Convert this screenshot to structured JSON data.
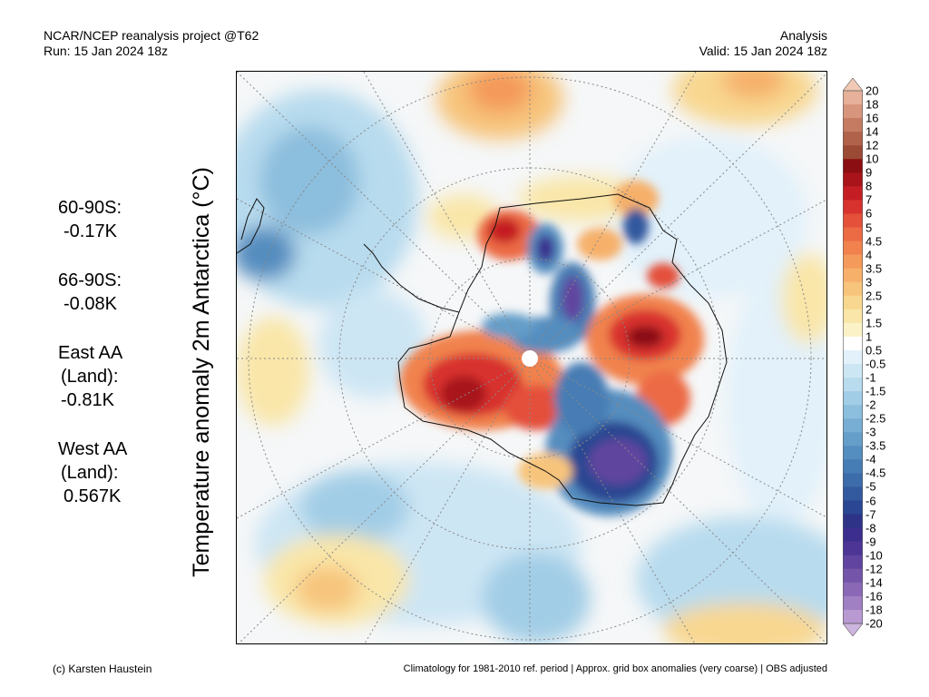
{
  "header": {
    "line1_left": "NCAR/NCEP reanalysis project @T62",
    "line2_left": "Run: 15 Jan 2024 18z",
    "line1_right": "Analysis",
    "line2_right": "Valid: 15 Jan 2024 18z"
  },
  "axis_title": "Temperature anomaly 2m Antarctica (°C)",
  "stats": [
    {
      "label": "60-90S:",
      "value": "-0.17K"
    },
    {
      "label": "66-90S:",
      "value": "-0.08K"
    },
    {
      "label_lines": [
        "East AA",
        "(Land):"
      ],
      "value": "-0.81K"
    },
    {
      "label_lines": [
        "West AA",
        "(Land):"
      ],
      "value": "0.567K"
    }
  ],
  "colorbar": {
    "labels": [
      "20",
      "18",
      "16",
      "14",
      "12",
      "10",
      "9",
      "8",
      "7",
      "6",
      "5",
      "4.5",
      "4",
      "3.5",
      "3",
      "2.5",
      "2",
      "1.5",
      "1",
      "0.5",
      "-0.5",
      "-1",
      "-1.5",
      "-2",
      "-2.5",
      "-3",
      "-3.5",
      "-4",
      "-4.5",
      "-5",
      "-6",
      "-7",
      "-8",
      "-9",
      "-10",
      "-12",
      "-14",
      "-16",
      "-18",
      "-20"
    ],
    "colors": [
      "#f2c9b4",
      "#e6b09a",
      "#d7957e",
      "#c47b62",
      "#b0624a",
      "#9b4a35",
      "#8b0e12",
      "#a8141a",
      "#c41e24",
      "#d8322e",
      "#e4503a",
      "#ec6a44",
      "#f1824e",
      "#f49a5a",
      "#f6b06a",
      "#f7c47c",
      "#f8d790",
      "#f9e6a8",
      "#fbf2c8",
      "#ffffff",
      "#e2f1fa",
      "#cde6f4",
      "#b8dbee",
      "#a2cde6",
      "#8cbedd",
      "#78aed3",
      "#659ec9",
      "#548dbf",
      "#467db4",
      "#3c6caa",
      "#33599e",
      "#2b4692",
      "#2e3388",
      "#3b2e8e",
      "#4d3596",
      "#60449f",
      "#7555aa",
      "#8a68b6",
      "#a07fc3",
      "#b899d1",
      "#cdb5df"
    ]
  },
  "map": {
    "features": [
      "antarctica-coastline",
      "south-america-tip",
      "latitude-circles",
      "longitude-lines",
      "south-pole-marker"
    ]
  },
  "footer": {
    "left": "(c) Karsten Haustein",
    "right": "Climatology for 1981-2010 ref. period | Approx. grid box anomalies (very coarse) | OBS adjusted"
  }
}
